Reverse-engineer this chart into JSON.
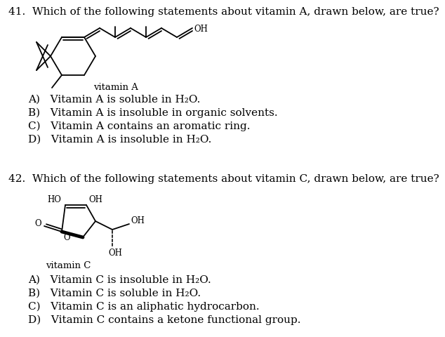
{
  "bg_color": "#ffffff",
  "q41_text": "41.  Which of the following statements about vitamin A, drawn below, are true?",
  "q42_text": "42.  Which of the following statements about vitamin C, drawn below, are true?",
  "vitA_label": "vitamin A",
  "vitC_label": "vitamin C",
  "q41_options": [
    "A)   Vitamin A is soluble in H₂O.",
    "B)   Vitamin A is insoluble in organic solvents.",
    "C)   Vitamin A contains an aromatic ring.",
    "D)   Vitamin A is insoluble in H₂O."
  ],
  "q42_options": [
    "A)   Vitamin C is insoluble in H₂O.",
    "B)   Vitamin C is soluble in H₂O.",
    "C)   Vitamin C is an aliphatic hydrocarbon.",
    "D)   Vitamin C contains a ketone functional group."
  ],
  "font_size_q": 11.0,
  "font_size_opt": 11.0,
  "font_size_label": 9.5,
  "font_size_chem": 8.5
}
